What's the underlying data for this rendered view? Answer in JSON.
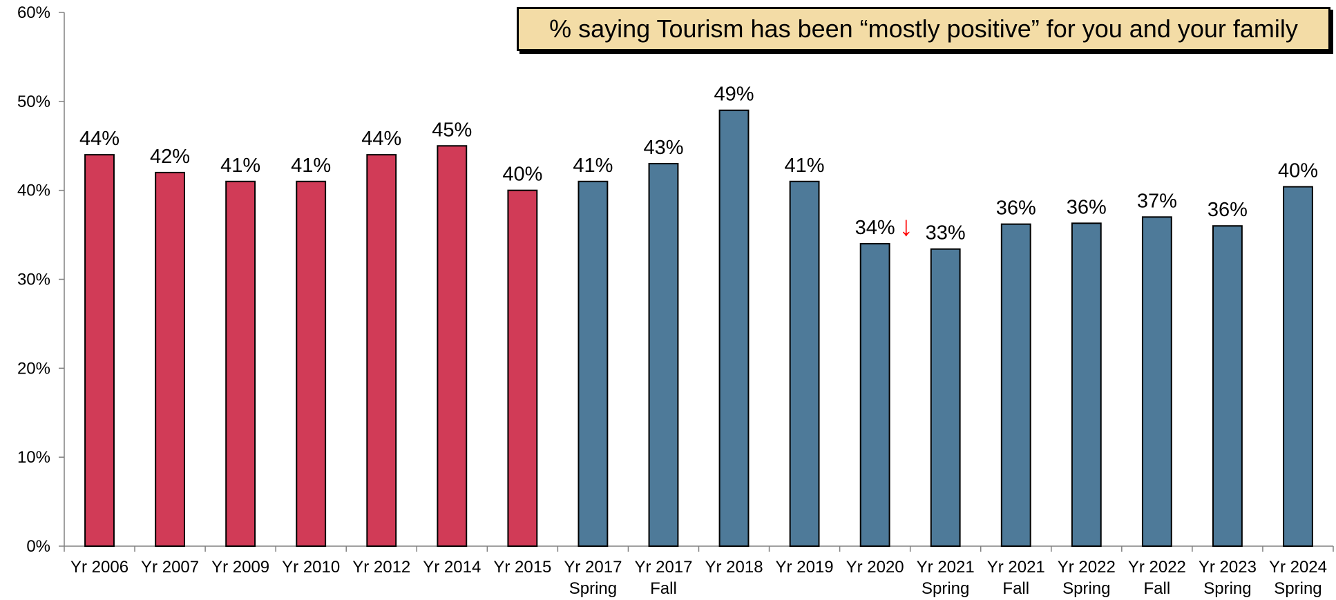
{
  "chart_data": {
    "type": "bar",
    "title": "% saying Tourism has been “mostly positive” for you and your family",
    "xlabel": "",
    "ylabel": "",
    "ylim": [
      0,
      60
    ],
    "yticks": [
      "0%",
      "10%",
      "20%",
      "30%",
      "40%",
      "50%",
      "60%"
    ],
    "categories": [
      [
        "Yr 2006"
      ],
      [
        "Yr 2007"
      ],
      [
        "Yr 2009"
      ],
      [
        "Yr 2010"
      ],
      [
        "Yr 2012"
      ],
      [
        "Yr 2014"
      ],
      [
        "Yr 2015"
      ],
      [
        "Yr 2017",
        "Spring"
      ],
      [
        "Yr 2017",
        "Fall"
      ],
      [
        "Yr 2018"
      ],
      [
        "Yr 2019"
      ],
      [
        "Yr 2020"
      ],
      [
        "Yr 2021",
        "Spring"
      ],
      [
        "Yr 2021",
        "Fall"
      ],
      [
        "Yr 2022",
        "Spring"
      ],
      [
        "Yr 2022",
        "Fall"
      ],
      [
        "Yr 2023",
        "Spring"
      ],
      [
        "Yr 2024",
        "Spring"
      ]
    ],
    "values": [
      44,
      42,
      41,
      41,
      44,
      45,
      40,
      41,
      43,
      49,
      41,
      34,
      33.4,
      36.2,
      36.3,
      37,
      36,
      40.4
    ],
    "labels": [
      "44%",
      "42%",
      "41%",
      "41%",
      "44%",
      "45%",
      "40%",
      "41%",
      "43%",
      "49%",
      "41%",
      "34%",
      "33%",
      "36%",
      "36%",
      "37%",
      "36%",
      "40%"
    ],
    "bar_colors": [
      "#d13b57",
      "#d13b57",
      "#d13b57",
      "#d13b57",
      "#d13b57",
      "#d13b57",
      "#d13b57",
      "#4e7a99",
      "#4e7a99",
      "#4e7a99",
      "#4e7a99",
      "#4e7a99",
      "#4e7a99",
      "#4e7a99",
      "#4e7a99",
      "#4e7a99",
      "#4e7a99",
      "#4e7a99"
    ],
    "annotations": [
      {
        "category_index": 11,
        "symbol": "↓",
        "color": "#ff0000",
        "meaning": "significant decrease"
      }
    ],
    "grid": false,
    "legend": "none"
  }
}
